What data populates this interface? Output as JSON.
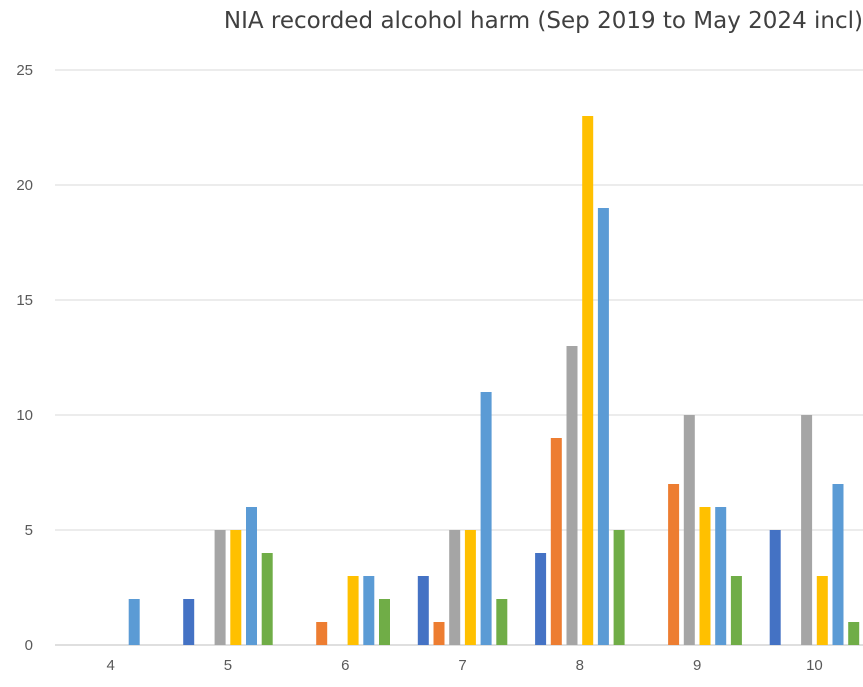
{
  "chart_data": {
    "type": "bar",
    "title": "NIA recorded alcohol harm (Sep 2019 to May 2024 incl)",
    "xlabel": "",
    "ylabel": "",
    "ylim": [
      0,
      25
    ],
    "yticks": [
      0,
      5,
      10,
      15,
      20,
      25
    ],
    "grid": true,
    "categories": [
      "4",
      "5",
      "6",
      "7",
      "8",
      "9",
      "10"
    ],
    "series": [
      {
        "color": "#4472C4",
        "values": [
          0,
          2,
          0,
          3,
          4,
          0,
          5
        ]
      },
      {
        "color": "#ED7D31",
        "values": [
          0,
          0,
          1,
          1,
          9,
          7,
          0
        ]
      },
      {
        "color": "#A5A5A5",
        "values": [
          0,
          5,
          0,
          5,
          13,
          10,
          10
        ]
      },
      {
        "color": "#FFC000",
        "values": [
          0,
          5,
          3,
          5,
          23,
          6,
          3
        ]
      },
      {
        "color": "#5B9BD5",
        "values": [
          2,
          6,
          3,
          11,
          19,
          6,
          7
        ]
      },
      {
        "color": "#70AD47",
        "values": [
          0,
          4,
          2,
          2,
          5,
          3,
          1
        ]
      }
    ]
  }
}
